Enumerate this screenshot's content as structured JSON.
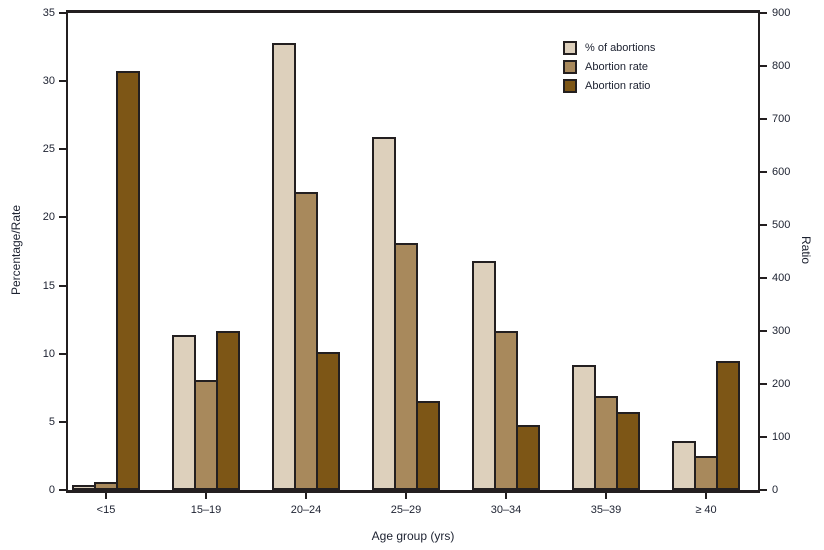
{
  "chart_data": {
    "type": "bar",
    "categories": [
      "<15",
      "15–19",
      "20–24",
      "25–29",
      "30–34",
      "35–39",
      "≥ 40"
    ],
    "series": [
      {
        "name": "% of abortions",
        "axis": "left",
        "color": "#ddd0bc",
        "values": [
          0.4,
          11.4,
          32.8,
          25.9,
          16.8,
          9.2,
          3.6
        ]
      },
      {
        "name": "Abortion rate",
        "axis": "left",
        "color": "#a8895c",
        "values": [
          0.6,
          8.1,
          21.9,
          18.1,
          11.7,
          6.9,
          2.5
        ]
      },
      {
        "name": "Abortion ratio",
        "axis": "right",
        "color": "#7d5616",
        "values": [
          790,
          300,
          260,
          168,
          122,
          148,
          244
        ]
      }
    ],
    "left_axis": {
      "label": "Percentage/Rate",
      "min": 0,
      "max": 35,
      "tick_step": 5
    },
    "right_axis": {
      "label": "Ratio",
      "min": 0,
      "max": 900,
      "tick_step": 100
    },
    "x_axis_label": "Age group (yrs)",
    "legend_position": "top-right-inside",
    "grid": false,
    "colors": {
      "bar_border": "#231f20",
      "axis": "#231f20",
      "text": "#1c2130"
    }
  }
}
